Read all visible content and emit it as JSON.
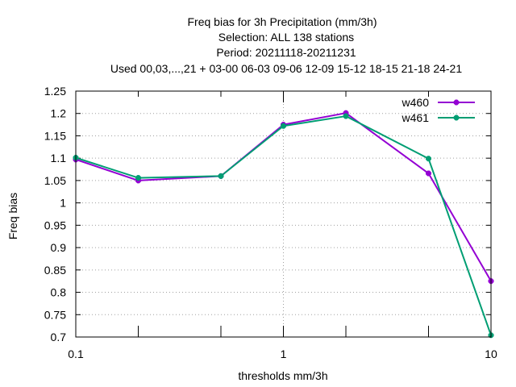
{
  "chart_data": {
    "type": "line",
    "title_lines": [
      "Freq bias  for 3h Precipitation (mm/3h)",
      "Selection: ALL     138 stations",
      "Period: 20211118-20211231",
      "Used  00,03,...,21  + 03-00 06-03 09-06 12-09 15-12 18-15 21-18 24-21"
    ],
    "xlabel": "thresholds mm/3h",
    "ylabel": "Freq bias",
    "x_scale": "log",
    "xlim": [
      0.1,
      10
    ],
    "ylim": [
      0.7,
      1.25
    ],
    "x_ticks": [
      {
        "value": 0.1,
        "label": "0.1"
      },
      {
        "value": 1,
        "label": "1"
      },
      {
        "value": 10,
        "label": "10"
      }
    ],
    "x_minor_ticks": [
      0.2,
      0.5,
      2,
      5
    ],
    "y_ticks": [
      {
        "value": 0.7,
        "label": "0.7"
      },
      {
        "value": 0.75,
        "label": "0.75"
      },
      {
        "value": 0.8,
        "label": "0.8"
      },
      {
        "value": 0.85,
        "label": "0.85"
      },
      {
        "value": 0.9,
        "label": "0.9"
      },
      {
        "value": 0.95,
        "label": "0.95"
      },
      {
        "value": 1.0,
        "label": "1"
      },
      {
        "value": 1.05,
        "label": "1.05"
      },
      {
        "value": 1.1,
        "label": "1.1"
      },
      {
        "value": 1.15,
        "label": "1.15"
      },
      {
        "value": 1.2,
        "label": "1.2"
      },
      {
        "value": 1.25,
        "label": "1.25"
      }
    ],
    "grid": true,
    "legend_position": "top-right",
    "x": [
      0.1,
      0.2,
      0.5,
      1,
      2,
      5,
      10
    ],
    "series": [
      {
        "name": "w460",
        "color": "#9400d3",
        "values": [
          1.097,
          1.05,
          1.06,
          1.175,
          1.201,
          1.066,
          0.825
        ]
      },
      {
        "name": "w461",
        "color": "#009e73",
        "values": [
          1.101,
          1.056,
          1.06,
          1.172,
          1.194,
          1.099,
          0.704
        ]
      }
    ]
  }
}
